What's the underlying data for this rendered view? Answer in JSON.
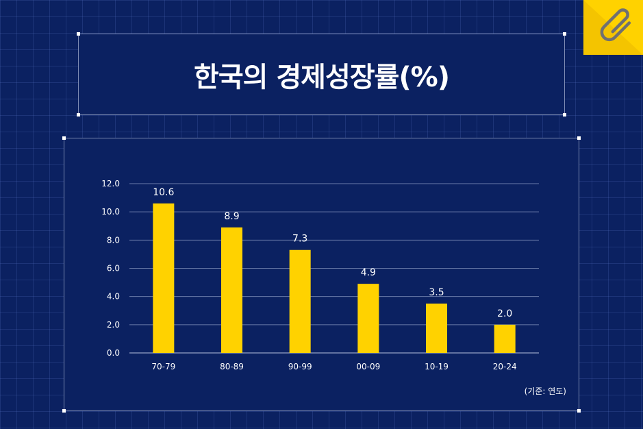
{
  "title": "한국의 경제성장률(%)",
  "unit_note": "(기준: 연도)",
  "colors": {
    "background": "#0b2161",
    "bar": "#ffd200",
    "tab": "#ffd200"
  },
  "corner_icon": "paperclip-icon",
  "chart_data": {
    "type": "bar",
    "title": "한국의 경제성장률(%)",
    "categories": [
      "70-79",
      "80-89",
      "90-99",
      "00-09",
      "10-19",
      "20-24"
    ],
    "values": [
      10.6,
      8.9,
      7.3,
      4.9,
      3.5,
      2.0
    ],
    "value_labels": [
      "10.6",
      "8.9",
      "7.3",
      "4.9",
      "3.5",
      "2.0"
    ],
    "yticks": [
      "0.0",
      "2.0",
      "4.0",
      "6.0",
      "8.0",
      "10.0",
      "12.0"
    ],
    "ylim": [
      0,
      12
    ],
    "xlabel": "",
    "ylabel": "",
    "grid": true
  }
}
